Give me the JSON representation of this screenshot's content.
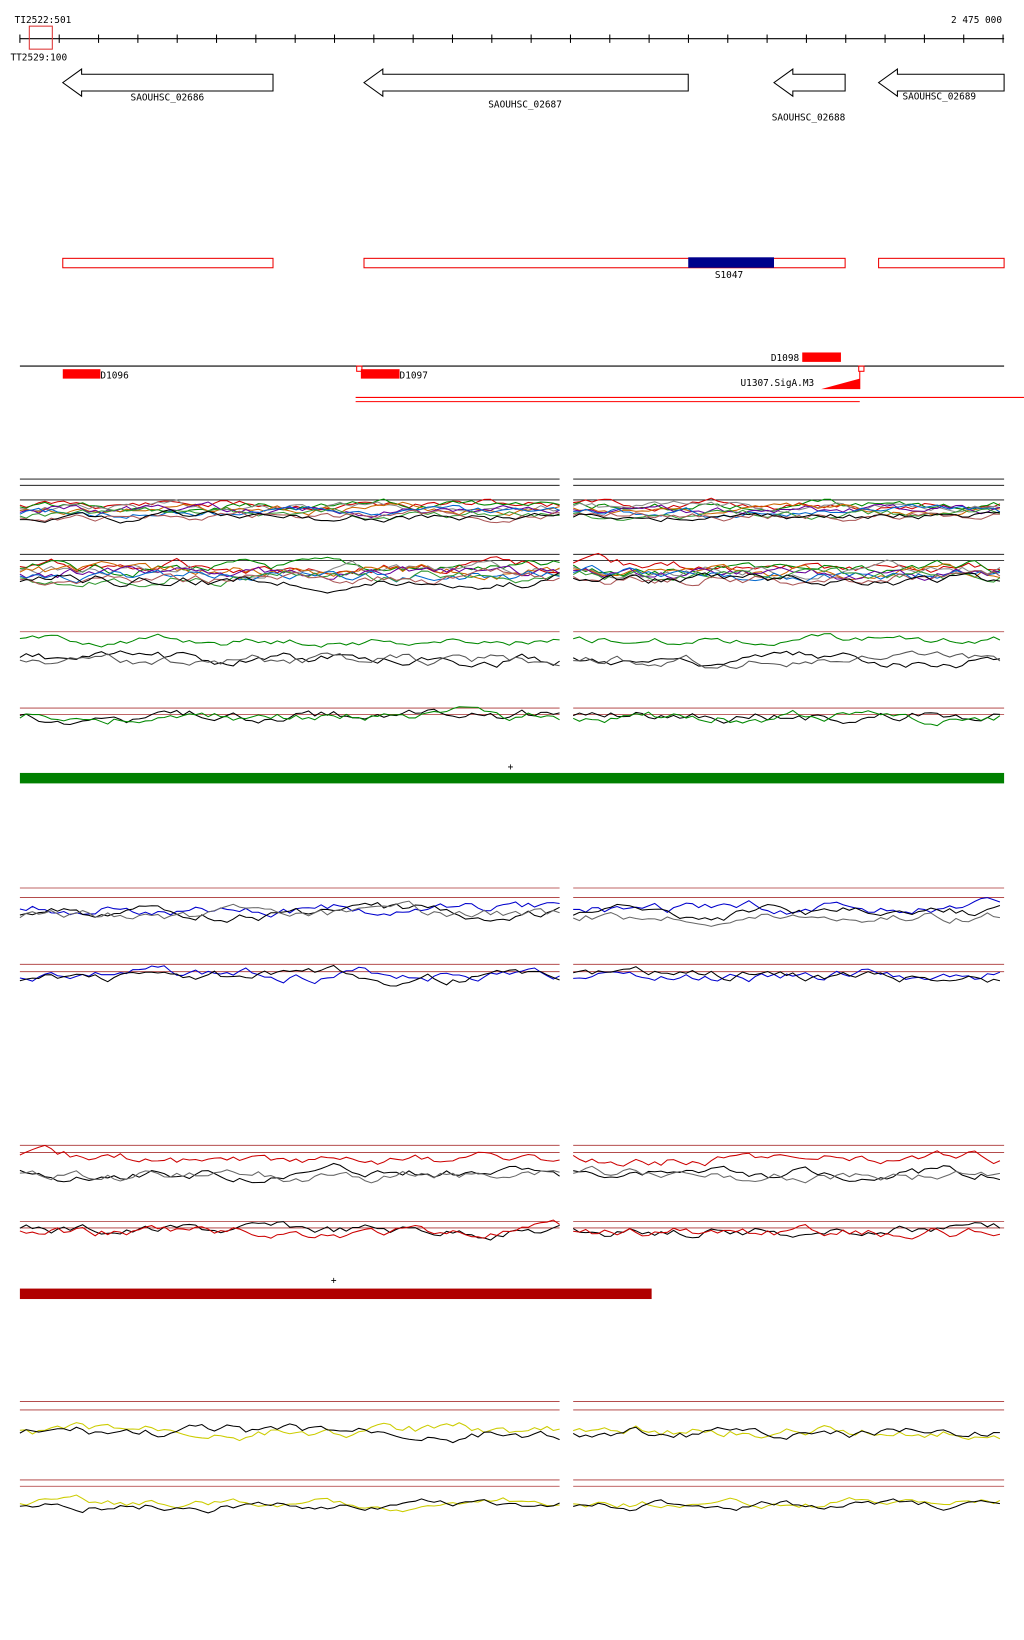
{
  "ruler": {
    "start_labels": [
      "TI2522:501",
      "TT2529:100"
    ],
    "end_label": "2 475 000"
  },
  "genes": [
    "SAOUHSC_02686",
    "SAOUHSC_02687",
    "SAOUHSC_02688",
    "SAOUHSC_02689"
  ],
  "segment_label": "S1047",
  "markers": [
    "D1096",
    "D1097",
    "D1098",
    "U1307.SigA.M3"
  ],
  "strands": [
    "+",
    "+"
  ]
}
